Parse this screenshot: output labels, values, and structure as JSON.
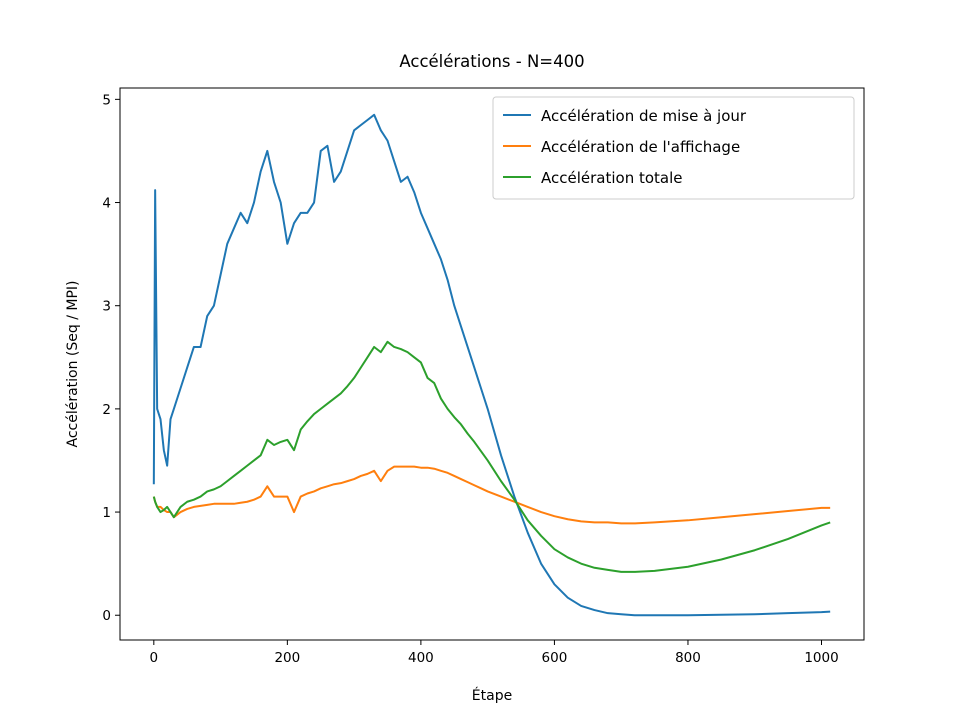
{
  "chart_data": {
    "type": "line",
    "title": "Accélérations - N=400",
    "xlabel": "Étape",
    "ylabel": "Accélération (Seq / MPI)",
    "x": [
      0,
      2,
      5,
      10,
      15,
      20,
      25,
      30,
      40,
      50,
      60,
      70,
      80,
      90,
      100,
      110,
      120,
      130,
      140,
      150,
      160,
      170,
      180,
      190,
      200,
      210,
      220,
      230,
      240,
      250,
      260,
      270,
      280,
      290,
      300,
      310,
      320,
      330,
      340,
      350,
      360,
      370,
      380,
      390,
      400,
      410,
      420,
      430,
      440,
      450,
      460,
      470,
      480,
      490,
      500,
      520,
      540,
      560,
      580,
      600,
      620,
      640,
      660,
      680,
      700,
      720,
      750,
      800,
      850,
      900,
      950,
      1000,
      1013
    ],
    "series": [
      {
        "name": "Accélération de mise à jour",
        "color": "#1f77b4",
        "values": [
          1.27,
          4.12,
          2.0,
          1.9,
          1.6,
          1.45,
          1.9,
          2.0,
          2.2,
          2.4,
          2.6,
          2.6,
          2.9,
          3.0,
          3.3,
          3.6,
          3.75,
          3.9,
          3.8,
          4.0,
          4.3,
          4.5,
          4.2,
          4.0,
          3.6,
          3.8,
          3.9,
          3.9,
          4.0,
          4.5,
          4.55,
          4.2,
          4.3,
          4.5,
          4.7,
          4.75,
          4.8,
          4.85,
          4.7,
          4.6,
          4.4,
          4.2,
          4.25,
          4.1,
          3.9,
          3.75,
          3.6,
          3.45,
          3.25,
          3.0,
          2.8,
          2.6,
          2.4,
          2.2,
          2.0,
          1.55,
          1.15,
          0.8,
          0.5,
          0.3,
          0.17,
          0.09,
          0.05,
          0.02,
          0.01,
          0.0,
          0.0,
          0.0,
          0.005,
          0.01,
          0.02,
          0.03,
          0.035
        ]
      },
      {
        "name": "Accélération de l'affichage",
        "color": "#ff7f0e",
        "values": [
          1.15,
          1.1,
          1.05,
          1.05,
          1.02,
          1.0,
          1.0,
          0.95,
          1.0,
          1.03,
          1.05,
          1.06,
          1.07,
          1.08,
          1.08,
          1.08,
          1.08,
          1.09,
          1.1,
          1.12,
          1.15,
          1.25,
          1.15,
          1.15,
          1.15,
          1.0,
          1.15,
          1.18,
          1.2,
          1.23,
          1.25,
          1.27,
          1.28,
          1.3,
          1.32,
          1.35,
          1.37,
          1.4,
          1.3,
          1.4,
          1.44,
          1.44,
          1.44,
          1.44,
          1.43,
          1.43,
          1.42,
          1.4,
          1.38,
          1.35,
          1.32,
          1.29,
          1.26,
          1.23,
          1.2,
          1.15,
          1.1,
          1.05,
          1.0,
          0.96,
          0.93,
          0.91,
          0.9,
          0.9,
          0.89,
          0.89,
          0.9,
          0.92,
          0.95,
          0.98,
          1.01,
          1.04,
          1.04
        ]
      },
      {
        "name": "Accélération totale",
        "color": "#2ca02c",
        "values": [
          1.15,
          1.1,
          1.05,
          1.0,
          1.02,
          1.05,
          1.0,
          0.95,
          1.05,
          1.1,
          1.12,
          1.15,
          1.2,
          1.22,
          1.25,
          1.3,
          1.35,
          1.4,
          1.45,
          1.5,
          1.55,
          1.7,
          1.65,
          1.68,
          1.7,
          1.6,
          1.8,
          1.88,
          1.95,
          2.0,
          2.05,
          2.1,
          2.15,
          2.22,
          2.3,
          2.4,
          2.5,
          2.6,
          2.55,
          2.65,
          2.6,
          2.58,
          2.55,
          2.5,
          2.45,
          2.3,
          2.25,
          2.1,
          2.0,
          1.92,
          1.85,
          1.76,
          1.68,
          1.59,
          1.5,
          1.3,
          1.12,
          0.92,
          0.77,
          0.64,
          0.56,
          0.5,
          0.46,
          0.44,
          0.42,
          0.42,
          0.43,
          0.47,
          0.54,
          0.63,
          0.74,
          0.87,
          0.9
        ]
      }
    ],
    "xlim": [
      -50.65,
      1063.65
    ],
    "ylim": [
      -0.24,
      5.11
    ],
    "xticks": [
      0,
      200,
      400,
      600,
      800,
      1000
    ],
    "yticks": [
      0,
      1,
      2,
      3,
      4,
      5
    ],
    "grid": false,
    "legend": "upper right"
  }
}
